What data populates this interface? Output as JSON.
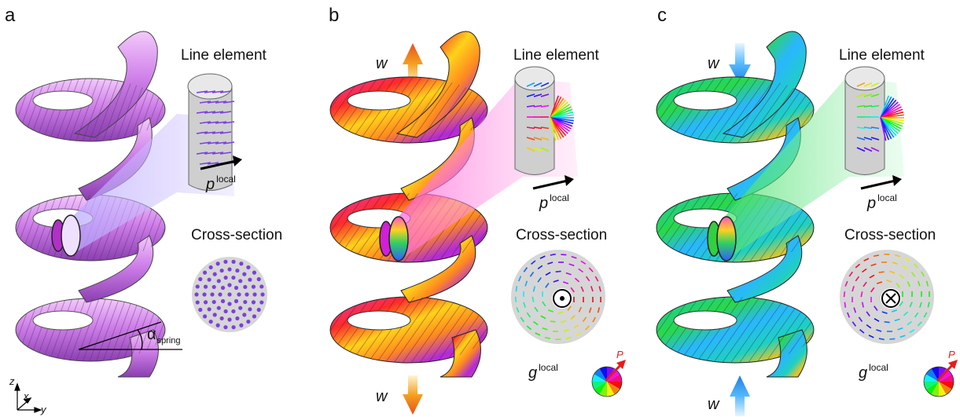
{
  "panels": [
    {
      "letter": "a",
      "line_element_label": "Line element",
      "cross_section_label": "Cross-section",
      "p_symbol": "p",
      "p_superscript": "local",
      "alpha_symbol": "α",
      "alpha_subscript": "spring",
      "coil_theme": "magenta-uniform"
    },
    {
      "letter": "b",
      "line_element_label": "Line element",
      "cross_section_label": "Cross-section",
      "p_symbol": "p",
      "p_superscript": "local",
      "g_symbol": "g",
      "g_superscript": "local",
      "w_top": "w",
      "w_bottom": "w",
      "polarization_label": "P",
      "arrow_color": "#f06a10",
      "coil_theme": "rainbow-warm"
    },
    {
      "letter": "c",
      "line_element_label": "Line element",
      "cross_section_label": "Cross-section",
      "p_symbol": "p",
      "p_superscript": "local",
      "g_symbol": "g",
      "g_superscript": "local",
      "w_top": "w",
      "w_bottom": "w",
      "polarization_label": "P",
      "arrow_color": "#2a8fe8",
      "coil_theme": "rainbow-cool"
    }
  ],
  "axes_triad": {
    "z": "z",
    "x": "x",
    "y": "y"
  },
  "colors": {
    "magenta": "#c86ee8",
    "arrow_orange": "#f06a10",
    "arrow_blue": "#2a8fe8",
    "vector_purple": "#7a3fe0"
  }
}
